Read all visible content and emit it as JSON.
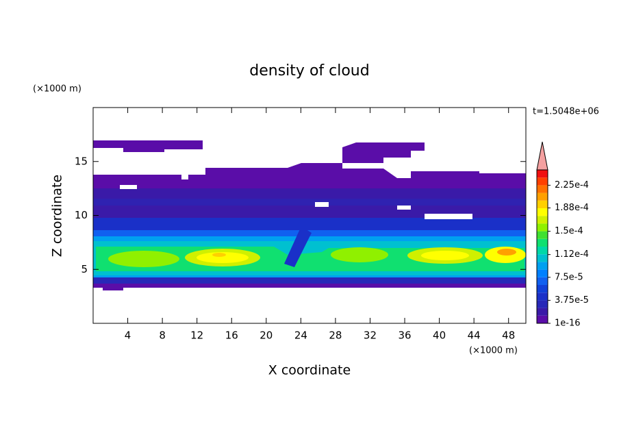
{
  "chart_data": {
    "type": "contour",
    "title": "density of cloud",
    "xlabel": "X coordinate",
    "ylabel": "Z coordinate",
    "x_unit": "(×1000 m)",
    "y_unit": "(×1000 m)",
    "annotation": "t=1.5048e+06",
    "xlim": [
      0,
      50
    ],
    "xticks": [
      4,
      8,
      12,
      16,
      20,
      24,
      28,
      32,
      36,
      40,
      44,
      48
    ],
    "ylim": [
      0,
      20
    ],
    "yticks": [
      5,
      10,
      15
    ],
    "colorbar": {
      "lim": [
        1e-16,
        0.00025
      ],
      "ticks": [
        {
          "value": 1e-16,
          "label": "1e-16"
        },
        {
          "value": 3.75e-05,
          "label": "3.75e-5"
        },
        {
          "value": 7.5e-05,
          "label": "7.5e-5"
        },
        {
          "value": 0.000112,
          "label": "1.12e-4"
        },
        {
          "value": 0.00015,
          "label": "1.5e-4"
        },
        {
          "value": 0.000188,
          "label": "1.88e-4"
        },
        {
          "value": 0.000225,
          "label": "2.25e-4"
        }
      ],
      "colors": [
        "#5a0da8",
        "#3a1aa8",
        "#2828b8",
        "#1a30c8",
        "#1040d8",
        "#1060f0",
        "#0080ff",
        "#00a0f0",
        "#00c0d0",
        "#00d8a8",
        "#10e070",
        "#40e030",
        "#90f000",
        "#d0f000",
        "#ffff00",
        "#ffd000",
        "#ffa000",
        "#ff7000",
        "#ff4000",
        "#f01010"
      ],
      "extend_color": "#f4a0a0"
    }
  }
}
